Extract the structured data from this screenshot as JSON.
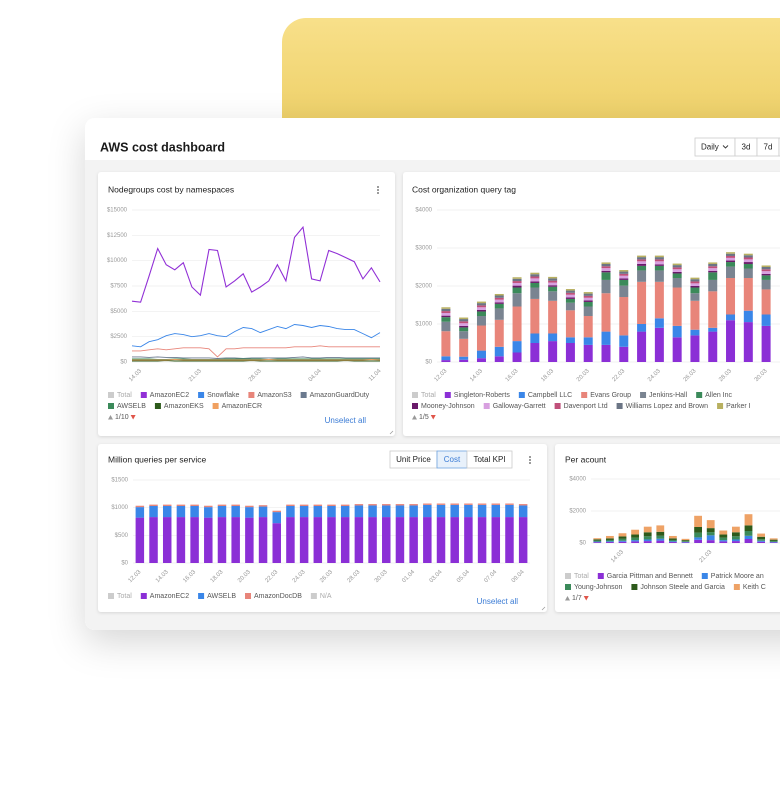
{
  "header": {
    "title": "AWS cost dashboard",
    "range_options": [
      "Daily",
      "3d",
      "7d"
    ]
  },
  "chart_data": [
    {
      "type": "line",
      "title": "Nodegroups cost by namespaces",
      "categories": [
        null,
        "14.03",
        null,
        null,
        null,
        null,
        null,
        null,
        "21.03",
        null,
        null,
        null,
        null,
        null,
        null,
        "28.03",
        null,
        null,
        null,
        null,
        null,
        null,
        "04.04",
        null,
        null,
        null,
        null,
        null,
        null,
        "11.04"
      ],
      "series": [
        {
          "name": "AmazonEC2",
          "color": "#9130d6",
          "values": [
            6000,
            5900,
            8500,
            11200,
            9600,
            9100,
            9800,
            7400,
            6600,
            11100,
            11000,
            7400,
            8000,
            8700,
            6900,
            7400,
            8000,
            9600,
            8000,
            12300,
            13300,
            8200,
            8000,
            11000,
            10700,
            10300,
            9900,
            8200,
            9300,
            7900
          ]
        },
        {
          "name": "Snowflake",
          "color": "#3a86e8",
          "values": [
            1600,
            1500,
            2000,
            2200,
            2600,
            2800,
            2700,
            2500,
            2600,
            2800,
            2600,
            2500,
            3000,
            3400,
            3300,
            2900,
            3200,
            3500,
            3300,
            3700,
            3600,
            3400,
            3600,
            3500,
            3300,
            3200,
            3200,
            2800,
            2400,
            2900
          ]
        },
        {
          "name": "AmazonS3",
          "color": "#e8857a",
          "values": [
            1100,
            1100,
            1200,
            1300,
            1200,
            1300,
            1400,
            1400,
            1400,
            1300,
            500,
            1300,
            1300,
            1400,
            1400,
            1400,
            1400,
            1400,
            1400,
            1500,
            1500,
            1500,
            1600,
            1500,
            1500,
            1500,
            1500,
            1500,
            1500,
            1500
          ]
        },
        {
          "name": "AmazonGuardDuty",
          "color": "#6b7a8f",
          "values": [
            500,
            500,
            450,
            500,
            450,
            450,
            400,
            400,
            400,
            400,
            350,
            400,
            400,
            350,
            400,
            400,
            400,
            400,
            400,
            450,
            500,
            400,
            400,
            450,
            450,
            400,
            400,
            400,
            400,
            400
          ]
        },
        {
          "name": "AWSELB",
          "color": "#3b8a5a",
          "values": [
            300,
            300,
            300,
            250,
            250,
            300,
            300,
            250,
            250,
            250,
            250,
            300,
            300,
            300,
            300,
            300,
            250,
            300,
            300,
            300,
            300,
            300,
            300,
            300,
            300,
            300,
            300,
            300,
            300,
            300
          ]
        },
        {
          "name": "AmazonEKS",
          "color": "#2d5a1b",
          "values": [
            100,
            100,
            100,
            100,
            150,
            100,
            100,
            100,
            100,
            100,
            100,
            100,
            100,
            100,
            150,
            100,
            100,
            100,
            100,
            100,
            100,
            100,
            100,
            100,
            100,
            150,
            100,
            100,
            100,
            100
          ]
        },
        {
          "name": "AmazonECR",
          "color": "#f0a060",
          "values": [
            200,
            200,
            200,
            200,
            200,
            250,
            200,
            200,
            200,
            200,
            200,
            200,
            200,
            200,
            200,
            200,
            250,
            200,
            200,
            200,
            200,
            200,
            200,
            200,
            200,
            200,
            200,
            200,
            250,
            200
          ]
        }
      ],
      "ylim": [
        0,
        15000
      ],
      "yticks": [
        {
          "value": 0,
          "label": "$0"
        },
        {
          "value": 2500,
          "label": "$2500"
        },
        {
          "value": 5000,
          "label": "$5000"
        },
        {
          "value": 7500,
          "label": "$7500"
        },
        {
          "value": 10000,
          "label": "$10000"
        },
        {
          "value": 12500,
          "label": "$12500"
        },
        {
          "value": 15000,
          "label": "$15000"
        }
      ],
      "grid": true,
      "legend_before": [
        "Total"
      ],
      "legend_page": "1/10",
      "action": "Unselect all"
    },
    {
      "type": "bar",
      "stacked": true,
      "title": "Cost organization query tag",
      "categories": [
        "12.03",
        null,
        "14.03",
        null,
        "16.03",
        null,
        "18.03",
        null,
        "20.03",
        null,
        "22.03",
        null,
        "24.03",
        null,
        "26.03",
        null,
        "28.03",
        null,
        "30.03"
      ],
      "series": [
        {
          "name": "Singleton-Roberts",
          "color": "#8b2fd6",
          "values": [
            50,
            60,
            100,
            150,
            250,
            500,
            550,
            500,
            450,
            450,
            400,
            800,
            900,
            650,
            700,
            800,
            1100,
            1050,
            950
          ]
        },
        {
          "name": "Campbell LLC",
          "color": "#3a86e8",
          "values": [
            100,
            80,
            200,
            250,
            300,
            250,
            200,
            150,
            200,
            350,
            300,
            200,
            250,
            300,
            150,
            100,
            150,
            300,
            300
          ]
        },
        {
          "name": "Evans Group",
          "color": "#e8857a",
          "values": [
            660,
            470,
            660,
            710,
            910,
            910,
            860,
            710,
            560,
            1010,
            1010,
            1110,
            960,
            1010,
            760,
            960,
            960,
            860,
            660
          ]
        },
        {
          "name": "Jenkins-Hall",
          "color": "#7a8491",
          "values": [
            250,
            200,
            250,
            300,
            350,
            300,
            250,
            200,
            250,
            350,
            300,
            300,
            300,
            250,
            200,
            300,
            300,
            250,
            250
          ]
        },
        {
          "name": "Allen Inc",
          "color": "#3b8a5a",
          "values": [
            120,
            100,
            120,
            120,
            150,
            120,
            120,
            100,
            120,
            200,
            150,
            120,
            120,
            120,
            150,
            200,
            120,
            120,
            120
          ]
        },
        {
          "name": "Mooney-Johnson",
          "color": "#6a1a6a",
          "values": [
            40,
            40,
            40,
            40,
            50,
            40,
            40,
            40,
            40,
            40,
            40,
            50,
            40,
            40,
            40,
            40,
            40,
            50,
            40
          ]
        },
        {
          "name": "Galloway-Garrett",
          "color": "#d8a0e0",
          "values": [
            70,
            70,
            70,
            70,
            70,
            80,
            70,
            70,
            70,
            70,
            70,
            70,
            80,
            70,
            70,
            70,
            70,
            70,
            70
          ]
        },
        {
          "name": "Davenport Ltd",
          "color": "#c0507a",
          "values": [
            50,
            50,
            50,
            50,
            50,
            50,
            50,
            50,
            50,
            50,
            50,
            50,
            50,
            50,
            50,
            50,
            50,
            50,
            50
          ]
        },
        {
          "name": "Williams Lopez and Brown",
          "color": "#6b7585",
          "values": [
            60,
            60,
            60,
            60,
            60,
            60,
            60,
            60,
            60,
            60,
            60,
            60,
            60,
            60,
            60,
            60,
            60,
            60,
            60
          ]
        },
        {
          "name": "Parker I",
          "color": "#b8b060",
          "values": [
            40,
            40,
            40,
            40,
            40,
            40,
            40,
            40,
            40,
            40,
            40,
            40,
            40,
            40,
            40,
            40,
            40,
            40,
            40
          ]
        }
      ],
      "ylim": [
        0,
        4000
      ],
      "yticks": [
        {
          "value": 0,
          "label": "$0"
        },
        {
          "value": 1000,
          "label": "$1000"
        },
        {
          "value": 2000,
          "label": "$2000"
        },
        {
          "value": 3000,
          "label": "$3000"
        },
        {
          "value": 4000,
          "label": "$4000"
        }
      ],
      "grid": true,
      "legend_before": [
        "Total"
      ],
      "legend_page": "1/5"
    },
    {
      "type": "bar",
      "stacked": true,
      "title": "Million queries per service",
      "view_options": [
        "Unit Price",
        "Cost",
        "Total KPI"
      ],
      "active_view": 1,
      "categories": [
        "12.03",
        null,
        "14.03",
        null,
        "16.03",
        null,
        "18.03",
        null,
        "20.03",
        null,
        "22.03",
        null,
        "24.03",
        null,
        "26.03",
        null,
        "28.03",
        null,
        "30.03",
        null,
        "01.04",
        null,
        "03.04",
        null,
        "05.04",
        null,
        "07.04",
        null,
        "09.04"
      ],
      "series": [
        {
          "name": "AmazonEC2",
          "color": "#8b2fd6",
          "values": [
            820,
            830,
            830,
            830,
            830,
            820,
            830,
            830,
            820,
            830,
            720,
            830,
            830,
            830,
            830,
            830,
            830,
            830,
            830,
            830,
            830,
            830,
            830,
            830,
            830,
            830,
            830,
            830,
            830
          ]
        },
        {
          "name": "AWSELB",
          "color": "#3a86e8",
          "values": [
            190,
            200,
            200,
            200,
            200,
            190,
            200,
            200,
            190,
            190,
            200,
            200,
            200,
            200,
            200,
            200,
            210,
            210,
            210,
            210,
            210,
            220,
            220,
            220,
            220,
            220,
            220,
            220,
            210
          ]
        },
        {
          "name": "AmazonDocDB",
          "color": "#e8857a",
          "values": [
            25,
            25,
            25,
            25,
            25,
            25,
            25,
            25,
            25,
            25,
            25,
            25,
            25,
            25,
            25,
            25,
            25,
            25,
            25,
            25,
            25,
            25,
            25,
            25,
            25,
            25,
            25,
            25,
            25
          ]
        }
      ],
      "ylim": [
        0,
        1500
      ],
      "yticks": [
        {
          "value": 0,
          "label": "$0"
        },
        {
          "value": 500,
          "label": "$500"
        },
        {
          "value": 1000,
          "label": "$1000"
        },
        {
          "value": 1500,
          "label": "$1500"
        }
      ],
      "grid": true,
      "legend_before": [
        "Total"
      ],
      "legend_after": [
        "N/A"
      ],
      "action": "Unselect all"
    },
    {
      "type": "bar",
      "stacked": true,
      "title": "Per acount",
      "categories": [
        null,
        null,
        "14.03",
        null,
        null,
        null,
        null,
        null,
        null,
        "21.03",
        null,
        null,
        null,
        null,
        null
      ],
      "series": [
        {
          "name": "Garcia Pittman and Bennett",
          "color": "#8b2fd6",
          "values": [
            50,
            60,
            80,
            100,
            120,
            150,
            60,
            40,
            200,
            180,
            100,
            120,
            250,
            80,
            40
          ]
        },
        {
          "name": "Patrick Moore an",
          "color": "#3a86e8",
          "values": [
            40,
            50,
            60,
            80,
            100,
            120,
            50,
            30,
            150,
            300,
            80,
            100,
            200,
            60,
            30
          ]
        },
        {
          "name": "Young-Johnson",
          "color": "#3b8a5a",
          "values": [
            60,
            80,
            120,
            150,
            200,
            180,
            80,
            50,
            300,
            200,
            150,
            200,
            300,
            100,
            60
          ]
        },
        {
          "name": "Johnson Steele and Garcia",
          "color": "#2d5a1b",
          "values": [
            80,
            100,
            150,
            200,
            250,
            250,
            100,
            60,
            350,
            250,
            200,
            250,
            350,
            150,
            80
          ]
        },
        {
          "name": "Keith C",
          "color": "#eea266",
          "values": [
            70,
            150,
            200,
            300,
            350,
            400,
            150,
            80,
            700,
            500,
            250,
            350,
            700,
            200,
            80
          ]
        }
      ],
      "ylim": [
        0,
        4000
      ],
      "yticks": [
        {
          "value": 0,
          "label": "$0"
        },
        {
          "value": 2000,
          "label": "$2000"
        },
        {
          "value": 4000,
          "label": "$4000"
        }
      ],
      "grid": true,
      "legend_before": [
        "Total"
      ],
      "legend_page": "1/7"
    }
  ]
}
